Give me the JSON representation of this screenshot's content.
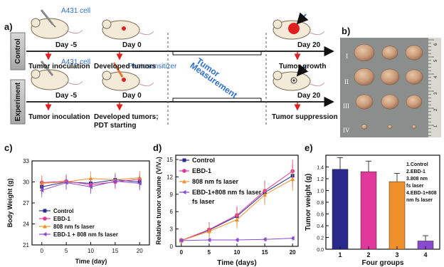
{
  "panel_labels": {
    "a": "a)",
    "b": "b)",
    "c": "c)",
    "d": "d)",
    "e": "e)"
  },
  "schematic": {
    "control_label": "Control",
    "experiment_label": "Experiment",
    "cell_label": "A431 cell",
    "photosensitizer_label": "Photosensitizer",
    "measurement_label_1": "Tumor",
    "measurement_label_2": "Measurement",
    "control_steps": [
      {
        "day": "Day -5",
        "caption": "Tumor inoculation"
      },
      {
        "day": "Day 0",
        "caption": "Developed tumors"
      },
      {
        "day": "Day 20",
        "caption": "Tumor growth"
      }
    ],
    "experiment_steps": [
      {
        "day": "Day -5",
        "caption": "Tumor inoculation"
      },
      {
        "day": "Day 0",
        "caption": "Developed tumors;",
        "caption2": "PDT starting"
      },
      {
        "day": "Day 20",
        "caption": "Tumor suppression"
      }
    ]
  },
  "photo": {
    "row_labels": [
      "I",
      "II",
      "III",
      "IV"
    ],
    "ruler_ticks": [
      "6",
      "5",
      "4",
      "3",
      "2",
      "1"
    ]
  },
  "colors": {
    "control": "#2a2a8c",
    "ebd1": "#e0389a",
    "laser": "#f0902a",
    "combo": "#8a4ad0",
    "accent_blue": "#2b6fd6",
    "arrow_red": "#e02020"
  },
  "chart_data": [
    {
      "id": "c",
      "type": "line",
      "xlabel": "Time (day)",
      "ylabel": "Body Weight (g)",
      "x": [
        0,
        5,
        10,
        15,
        20
      ],
      "xticks": [
        "0",
        "5",
        "10",
        "15",
        "20"
      ],
      "yticks": [
        "21",
        "24",
        "27",
        "30",
        "33"
      ],
      "ylim": [
        21,
        33
      ],
      "xlim": [
        -2,
        22
      ],
      "legend_position": "bottom-left",
      "series": [
        {
          "name": "Control",
          "values": [
            29.3,
            30.0,
            29.8,
            30.3,
            30.0
          ],
          "err": [
            1.0,
            1.0,
            1.0,
            1.0,
            1.0
          ]
        },
        {
          "name": "EBD-1",
          "values": [
            29.9,
            30.1,
            29.6,
            30.0,
            30.4
          ],
          "err": [
            1.0,
            1.0,
            1.0,
            1.0,
            1.0
          ]
        },
        {
          "name": "808 nm fs laser",
          "values": [
            29.8,
            30.0,
            30.5,
            30.3,
            30.6
          ],
          "err": [
            1.0,
            1.0,
            1.0,
            1.0,
            1.0
          ]
        },
        {
          "name": "EBD-1 + 808 nm fs laser",
          "values": [
            28.8,
            29.9,
            29.3,
            30.1,
            29.8
          ],
          "err": [
            1.0,
            1.0,
            1.0,
            1.0,
            1.0
          ]
        }
      ]
    },
    {
      "id": "d",
      "type": "line",
      "xlabel": "Time (days)",
      "ylabel": "Relative tumor volume (V/V₀)",
      "x": [
        0,
        5,
        10,
        15,
        20
      ],
      "xticks": [
        "0",
        "5",
        "10",
        "15",
        "20"
      ],
      "yticks": [
        "0",
        "3",
        "6",
        "9",
        "12",
        "15"
      ],
      "ylim": [
        0,
        15
      ],
      "xlim": [
        -1,
        21
      ],
      "legend_position": "top-left",
      "series": [
        {
          "name": "Control",
          "values": [
            1.0,
            2.8,
            5.2,
            9.3,
            12.2
          ],
          "err": [
            0.5,
            1.2,
            1.5,
            1.8,
            2.0
          ]
        },
        {
          "name": "EBD-1",
          "values": [
            1.0,
            2.9,
            5.4,
            9.6,
            13.0
          ],
          "err": [
            0.5,
            1.3,
            1.6,
            1.8,
            2.0
          ]
        },
        {
          "name": "808 nm fs laser",
          "values": [
            1.0,
            2.6,
            4.6,
            8.9,
            11.6
          ],
          "err": [
            0.5,
            1.2,
            1.5,
            1.8,
            2.0
          ]
        },
        {
          "name": "EBD-1+808 nm fs laser",
          "values": [
            1.0,
            1.1,
            1.1,
            1.2,
            1.4
          ],
          "err": [
            0.4,
            0.4,
            0.4,
            0.4,
            0.4
          ]
        }
      ]
    },
    {
      "id": "e",
      "type": "bar",
      "xlabel": "Four groups",
      "ylabel": "Tumor weight (g)",
      "categories": [
        "1",
        "2",
        "3",
        "4"
      ],
      "values": [
        1.36,
        1.32,
        1.15,
        0.14
      ],
      "err": [
        0.2,
        0.18,
        0.14,
        0.09
      ],
      "yticks": [
        "0.0",
        "0.2",
        "0.4",
        "0.6",
        "0.8",
        "1.0",
        "1.2",
        "1.4"
      ],
      "ylim": [
        0,
        1.6
      ],
      "legend_position": "top-right",
      "legend": [
        "1.Control",
        "2.EBD-1",
        "3.808 nm",
        "fs laser",
        "4.EBD-1+808",
        "nm fs laser"
      ]
    }
  ]
}
